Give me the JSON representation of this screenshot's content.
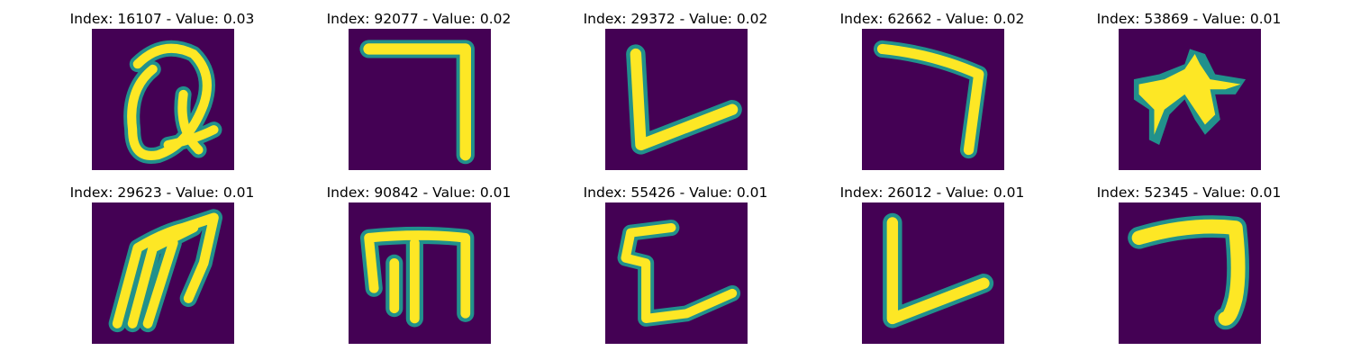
{
  "figure": {
    "colors": {
      "background": "#440154",
      "glyph": "#fde725",
      "edge": "#21918c"
    },
    "panels": [
      {
        "index": "16107",
        "value": "0.03",
        "title": "Index: 16107 - Value: 0.03",
        "glyph": "q-scribble"
      },
      {
        "index": "92077",
        "value": "0.02",
        "title": "Index: 92077 - Value: 0.02",
        "glyph": "seven-square"
      },
      {
        "index": "29372",
        "value": "0.02",
        "title": "Index: 29372 - Value: 0.02",
        "glyph": "l-shape"
      },
      {
        "index": "62662",
        "value": "0.02",
        "title": "Index: 62662 - Value: 0.02",
        "glyph": "seven-curved"
      },
      {
        "index": "53869",
        "value": "0.01",
        "title": "Index: 53869 - Value: 0.01",
        "glyph": "blob-star"
      },
      {
        "index": "29623",
        "value": "0.01",
        "title": "Index: 29623 - Value: 0.01",
        "glyph": "m-slanted"
      },
      {
        "index": "90842",
        "value": "0.01",
        "title": "Index: 90842 - Value: 0.01",
        "glyph": "m-upright"
      },
      {
        "index": "55426",
        "value": "0.01",
        "title": "Index: 55426 - Value: 0.01",
        "glyph": "c-bracket"
      },
      {
        "index": "26012",
        "value": "0.01",
        "title": "Index: 26012 - Value: 0.01",
        "glyph": "l-shape-2"
      },
      {
        "index": "52345",
        "value": "0.01",
        "title": "Index: 52345 - Value: 0.01",
        "glyph": "seven-thick"
      }
    ]
  }
}
